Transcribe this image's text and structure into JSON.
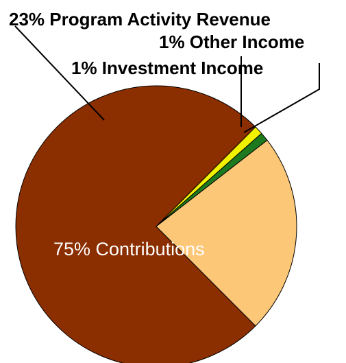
{
  "chart_data": {
    "type": "pie",
    "slices": [
      {
        "label": "Contributions",
        "percent_label": "75% Contributions",
        "value": 75,
        "color": "#8B2E00"
      },
      {
        "label": "Investment Income",
        "percent_label": "1% Investment Income",
        "value": 1,
        "color": "#F2F200"
      },
      {
        "label": "Other Income",
        "percent_label": "1% Other Income",
        "value": 1,
        "color": "#1E7A1E"
      },
      {
        "label": "Program Activity Revenue",
        "percent_label": "23% Program Activity Revenue",
        "value": 23,
        "color": "#FCC777"
      }
    ]
  }
}
